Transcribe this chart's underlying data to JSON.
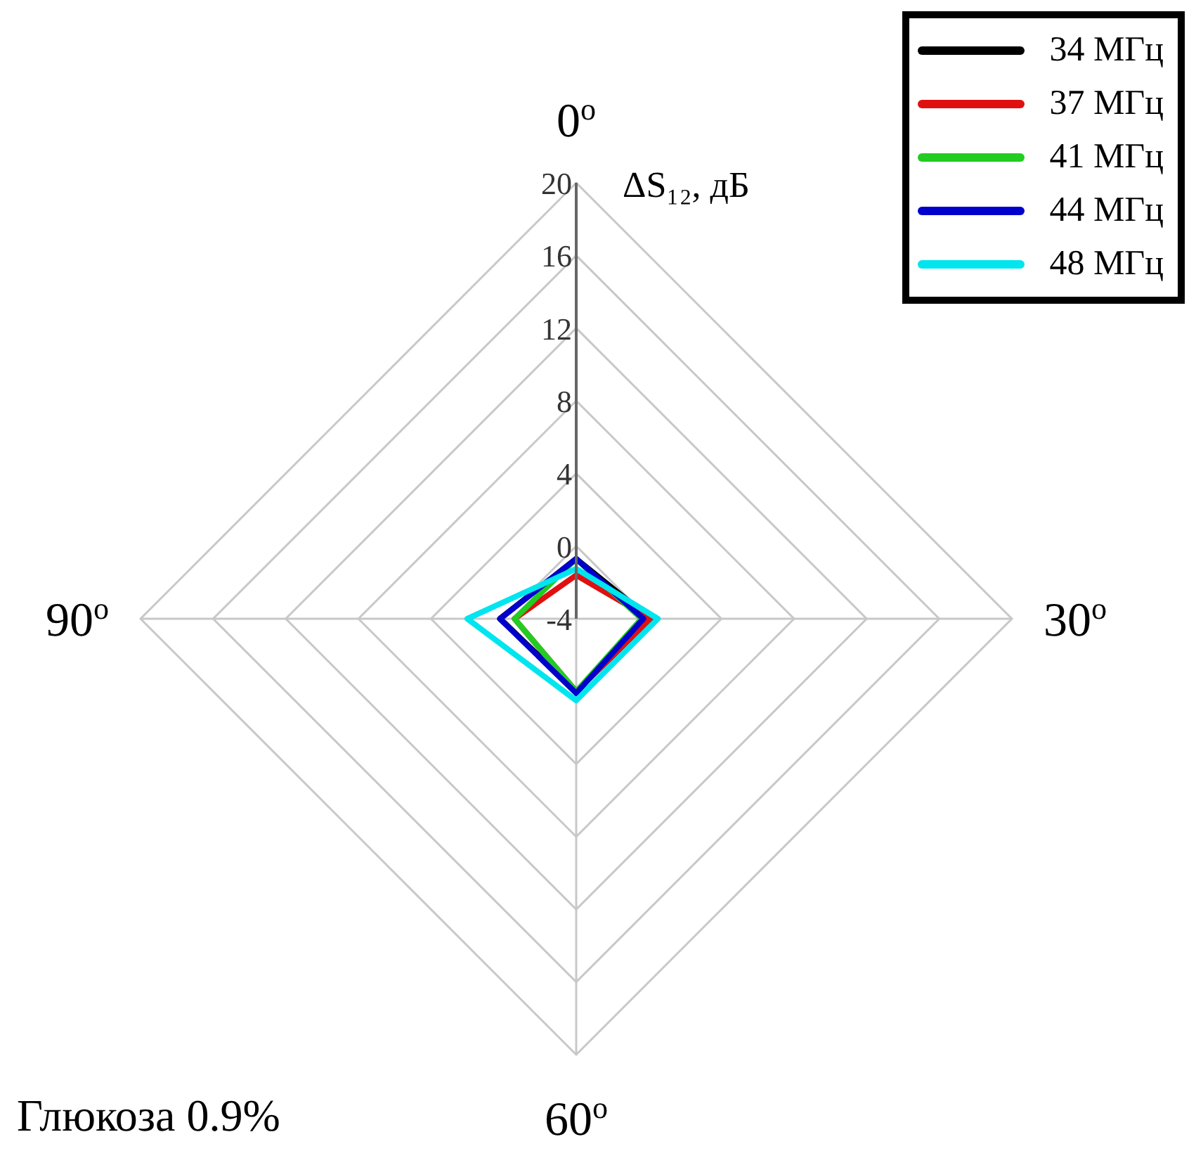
{
  "chart_data": {
    "type": "radar",
    "categories": [
      "0$^{o}$",
      "30$^{o}$",
      "60$^{o}$",
      "90$^{o}$"
    ],
    "ylabel": "ΔS₁₂, дБ",
    "annotations": [
      "Глюкоза 0.9%"
    ],
    "ylim": [
      -4,
      20
    ],
    "yticks": [
      -4,
      0,
      4,
      8,
      12,
      16,
      20
    ],
    "grid": true,
    "legend": "top right",
    "marker": "none",
    "line_style": "solid",
    "series": [
      {
        "name": "34 МГц",
        "color": "#000000",
        "values": [
          -0.7,
          0.1,
          0,
          0.2
        ]
      },
      {
        "name": "37 МГц",
        "color": "#e01010",
        "values": [
          -1.6,
          0.1,
          0,
          -0.6
        ]
      },
      {
        "name": "41 МГц",
        "color": "#22cc22",
        "values": [
          -0.7,
          -0.4,
          0,
          -0.6
        ]
      },
      {
        "name": "44 МГц",
        "color": "#0000cc",
        "values": [
          -0.7,
          -0.3,
          0.1,
          0.2
        ]
      },
      {
        "name": "48 МГц",
        "color": "#00e5ee",
        "values": [
          -1.25,
          0.5,
          0.5,
          2
        ]
      }
    ]
  }
}
